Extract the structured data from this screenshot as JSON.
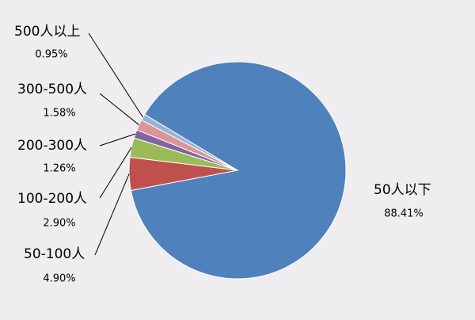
{
  "chart_data": {
    "type": "pie",
    "categories": [
      "50人以下",
      "50-100人",
      "100-200人",
      "200-300人",
      "300-500人",
      "500人以上"
    ],
    "values": [
      88.41,
      4.9,
      2.9,
      1.26,
      1.58,
      0.95
    ],
    "value_labels": [
      "88.41%",
      "4.90%",
      "2.90%",
      "1.26%",
      "1.58%",
      "0.95%"
    ],
    "colors": [
      "#4f81bd",
      "#c0504d",
      "#9bbb59",
      "#8064a2",
      "#d99694",
      "#95b3d7"
    ]
  }
}
